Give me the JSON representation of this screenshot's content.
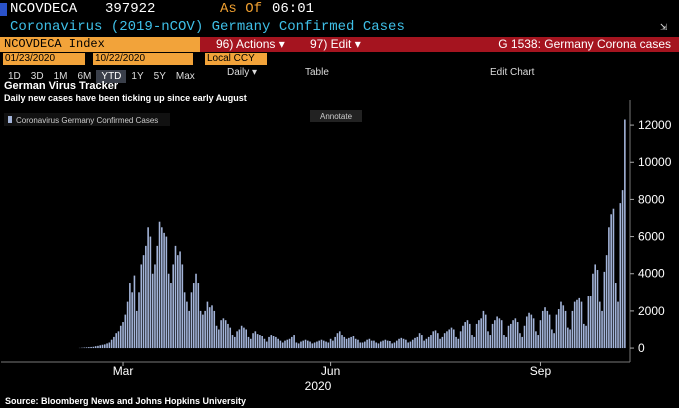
{
  "header": {
    "ticker": "NCOVDECA",
    "value": "397922",
    "as_of": "As Of",
    "time": "06:01",
    "description": "Coronavirus (2019-nCOV) Germany Confirmed Cases"
  },
  "toolbar": {
    "security": "NCOVDECA Index",
    "actions": "96) Actions ▾",
    "edit": "97) Edit ▾",
    "page_title": "G 1538: Germany Corona cases",
    "start_date": "01/23/2020",
    "end_date": "10/22/2020",
    "currency": "Local CCY",
    "ranges": [
      "1D",
      "3D",
      "1M",
      "6M",
      "YTD",
      "1Y",
      "5Y",
      "Max"
    ],
    "frequency": "Daily ▾",
    "table": "Table",
    "edit_chart": "Edit Chart"
  },
  "chart_data": {
    "type": "bar",
    "title": "German Virus Tracker",
    "subtitle": "Daily new cases have been ticking up since early August",
    "annotate": "Annotate",
    "xlabel": "2020",
    "source": "Source: Bloomberg News and Johns Hopkins University",
    "series": [
      {
        "name": "Coronavirus Germany Confirmed Cases",
        "color": "#a3b4d9",
        "values": [
          0,
          0,
          0,
          0,
          0,
          0,
          0,
          0,
          0,
          0,
          0,
          0,
          0,
          0,
          0,
          0,
          0,
          0,
          0,
          0,
          0,
          0,
          0,
          0,
          0,
          0,
          0,
          0,
          0,
          0,
          0,
          0,
          0,
          0,
          10,
          20,
          30,
          40,
          50,
          60,
          70,
          100,
          120,
          150,
          180,
          200,
          250,
          300,
          450,
          600,
          800,
          900,
          1200,
          1400,
          1800,
          2500,
          3500,
          3000,
          3900,
          2000,
          3000,
          4500,
          5000,
          5500,
          6500,
          6000,
          4000,
          4500,
          5500,
          6800,
          6500,
          6200,
          6000,
          4000,
          3500,
          4500,
          5500,
          5000,
          5200,
          4500,
          3000,
          2500,
          2000,
          3000,
          3500,
          4000,
          3500,
          2000,
          1800,
          2000,
          2500,
          2200,
          2300,
          2000,
          1200,
          1000,
          1500,
          1600,
          1500,
          1300,
          1100,
          700,
          600,
          900,
          1000,
          1200,
          1100,
          1000,
          600,
          500,
          800,
          900,
          750,
          700,
          650,
          500,
          350,
          600,
          700,
          650,
          600,
          500,
          400,
          300,
          400,
          450,
          500,
          600,
          700,
          300,
          250,
          350,
          400,
          450,
          400,
          350,
          250,
          300,
          350,
          400,
          450,
          400,
          350,
          300,
          500,
          400,
          600,
          800,
          900,
          700,
          600,
          500,
          550,
          600,
          650,
          500,
          450,
          300,
          300,
          350,
          450,
          500,
          400,
          400,
          300,
          250,
          350,
          400,
          450,
          400,
          380,
          250,
          300,
          400,
          500,
          550,
          500,
          450,
          300,
          350,
          450,
          550,
          600,
          800,
          700,
          400,
          500,
          600,
          700,
          900,
          950,
          800,
          500,
          600,
          800,
          900,
          1000,
          1100,
          1000,
          600,
          500,
          900,
          1200,
          1400,
          1500,
          1300,
          700,
          600,
          1300,
          1500,
          1600,
          2000,
          1800,
          900,
          700,
          1300,
          1500,
          1700,
          1600,
          1500,
          700,
          600,
          1200,
          1300,
          1500,
          1600,
          1400,
          800,
          600,
          1200,
          1700,
          1900,
          1800,
          1600,
          900,
          700,
          1500,
          2000,
          2200,
          2000,
          1800,
          1000,
          800,
          1800,
          2100,
          2500,
          2300,
          2000,
          1100,
          1000,
          2000,
          2500,
          2600,
          2700,
          2500,
          1300,
          1200,
          2800,
          2800,
          4000,
          4500,
          4200,
          2500,
          2000,
          4100,
          5000,
          6500,
          7200,
          7500,
          3500,
          2500,
          7800,
          8500,
          12300
        ]
      }
    ],
    "categories": [
      null,
      null,
      null,
      null,
      null,
      null,
      null,
      null,
      null,
      null,
      null,
      null,
      null,
      null,
      null,
      null,
      null,
      null,
      null,
      null,
      null,
      null,
      null,
      null,
      null,
      null,
      null,
      null,
      null,
      null,
      null,
      null,
      null,
      null,
      null,
      null,
      null,
      null,
      null,
      null,
      null,
      null,
      null,
      null,
      null,
      null,
      null,
      null,
      null,
      null,
      null,
      null,
      null,
      "Mar",
      null,
      null,
      null,
      null,
      null,
      null,
      null,
      null,
      null,
      null,
      null,
      null,
      null,
      null,
      null,
      null,
      null,
      null,
      null,
      null,
      null,
      null,
      null,
      null,
      null,
      null,
      null,
      null,
      null,
      null,
      null,
      null,
      null,
      null,
      null,
      null,
      null,
      null,
      null,
      null,
      null,
      null,
      null,
      null,
      null,
      null,
      null,
      null,
      null,
      null,
      null,
      null,
      null,
      null,
      null,
      null,
      null,
      null,
      null,
      null,
      null,
      null,
      null,
      null,
      null,
      null,
      null,
      null,
      null,
      null,
      null,
      null,
      null,
      null,
      null,
      null,
      null,
      null,
      null,
      null,
      null,
      null,
      null,
      null,
      null,
      null,
      null,
      null,
      null,
      null,
      "Jun",
      null,
      null,
      null,
      null,
      null,
      null,
      null,
      null,
      null,
      null,
      null,
      null,
      null,
      null,
      null,
      null,
      null,
      null,
      null,
      null,
      null,
      null,
      null,
      null,
      null,
      null,
      null,
      null,
      null,
      null,
      null,
      null,
      null,
      null,
      null,
      null,
      null,
      null,
      null,
      null,
      null,
      null,
      null,
      null,
      null,
      null,
      null,
      null,
      null,
      null,
      null,
      null,
      null,
      null,
      null,
      null,
      null,
      null,
      null,
      null,
      null,
      null,
      null,
      null,
      null,
      null,
      null,
      null,
      null,
      null,
      null,
      null,
      null,
      null,
      null,
      null,
      null,
      null,
      null,
      null,
      null,
      null,
      null,
      null,
      null,
      null,
      null,
      null,
      null,
      null,
      null,
      "Sep",
      null,
      null,
      null,
      null,
      null,
      null,
      null,
      null,
      null,
      null,
      null,
      null,
      null,
      null,
      null,
      null,
      null,
      null,
      null,
      null,
      null,
      null,
      null,
      null,
      null,
      null,
      null,
      null,
      null,
      null,
      null,
      null,
      null,
      null,
      null,
      null,
      null
    ],
    "ylim": [
      -750,
      13350
    ],
    "yticks": [
      0,
      2000,
      4000,
      6000,
      8000,
      10000,
      12000
    ],
    "grid": false,
    "legend": "top-left"
  }
}
